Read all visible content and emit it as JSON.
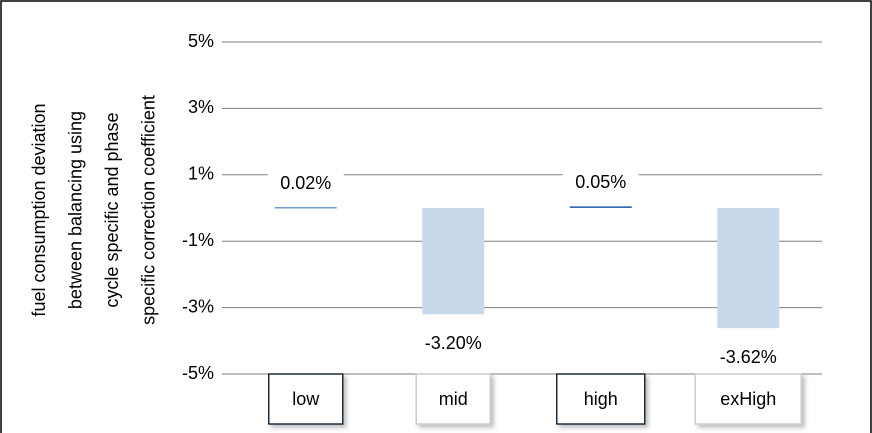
{
  "chart_data": {
    "type": "bar",
    "y_label": [
      "fuel consumption deviation",
      "between  balancing using",
      "cycle specific and phase",
      "specific correction coefficient"
    ],
    "categories": [
      "low",
      "mid",
      "high",
      "exHigh"
    ],
    "values": [
      0.02,
      -3.2,
      0.05,
      -3.62
    ],
    "value_labels": [
      "0.02%",
      "-3.20%",
      "0.05%",
      "-3.62%"
    ],
    "colors": [
      "#2e6bb5",
      "#c9d9ec",
      "#2e6bb5",
      "#c9d9ec"
    ],
    "label_colors": [
      "#000000",
      "#b3b3b3",
      "#000000",
      "#b3b3b3"
    ],
    "box_colors": [
      "#1f2d3d",
      "#cccccc",
      "#1f2d3d",
      "#cccccc"
    ],
    "ylim": [
      -5,
      5
    ],
    "yticks": [
      {
        "value": 5,
        "label": "5%"
      },
      {
        "value": 3,
        "label": "3%"
      },
      {
        "value": 1,
        "label": "1%"
      },
      {
        "value": -1,
        "label": "-1%"
      },
      {
        "value": -3,
        "label": "-3%"
      },
      {
        "value": -5,
        "label": "-5%"
      }
    ],
    "grid": true
  }
}
